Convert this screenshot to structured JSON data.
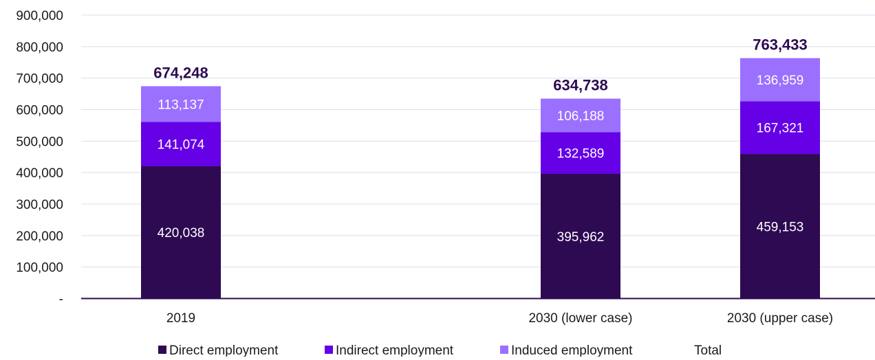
{
  "chart_data": {
    "type": "bar",
    "stacked": true,
    "categories": [
      "2019",
      "2030 (lower case)",
      "2030 (upper case)"
    ],
    "series": [
      {
        "name": "Direct employment",
        "color": "#2d0a52",
        "values": [
          420038,
          395962,
          459153
        ],
        "labels": [
          "420,038",
          "395,962",
          "459,153"
        ]
      },
      {
        "name": "Indirect employment",
        "color": "#6600e6",
        "values": [
          141074,
          132589,
          167321
        ],
        "labels": [
          "141,074",
          "132,589",
          "167,321"
        ]
      },
      {
        "name": "Induced employment",
        "color": "#9b70ff",
        "values": [
          113137,
          106188,
          136959
        ],
        "labels": [
          "113,137",
          "106,188",
          "136,959"
        ]
      }
    ],
    "totals": {
      "name": "Total",
      "values": [
        674248,
        634738,
        763433
      ],
      "labels": [
        "674,248",
        "634,738",
        "763,433"
      ]
    },
    "ylim": [
      0,
      900000
    ],
    "yticks": [
      {
        "value": 0,
        "label": "-"
      },
      {
        "value": 100000,
        "label": "100,000"
      },
      {
        "value": 200000,
        "label": "200,000"
      },
      {
        "value": 300000,
        "label": "300,000"
      },
      {
        "value": 400000,
        "label": "400,000"
      },
      {
        "value": 500000,
        "label": "500,000"
      },
      {
        "value": 600000,
        "label": "600,000"
      },
      {
        "value": 700000,
        "label": "700,000"
      },
      {
        "value": 800000,
        "label": "800,000"
      },
      {
        "value": 900000,
        "label": "900,000"
      }
    ],
    "grid": true,
    "legend_position": "bottom",
    "axis_color": "#2d0a52",
    "grid_color": "#dcdcf0"
  }
}
